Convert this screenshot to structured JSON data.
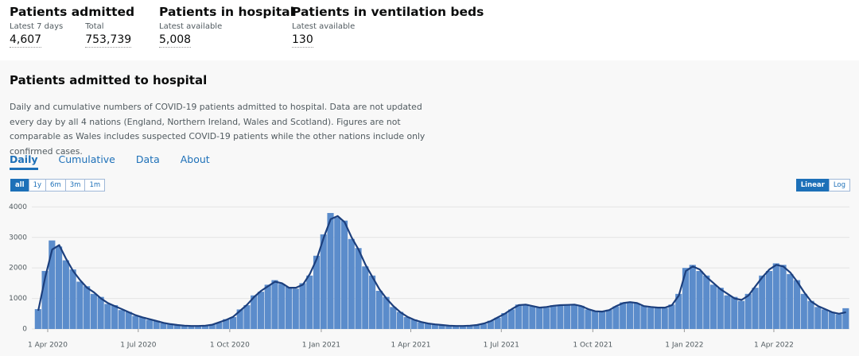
{
  "summary": [
    {
      "title": "Patients admitted",
      "items": [
        {
          "label": "Latest 7 days",
          "value": "4,607"
        },
        {
          "label": "Total",
          "value": "753,739"
        }
      ]
    },
    {
      "title": "Patients in hospital",
      "items": [
        {
          "label": "Latest available",
          "value": "5,008"
        }
      ]
    },
    {
      "title": "Patients in ventilation beds",
      "items": [
        {
          "label": "Latest available",
          "value": "130"
        }
      ]
    }
  ],
  "card": {
    "title": "Patients admitted to hospital",
    "description": "Daily and cumulative numbers of COVID-19 patients admitted to hospital. Data are not updated every day by all 4 nations (England, Northern Ireland, Wales and Scotland). Figures are not comparable as Wales includes suspected COVID-19 patients while the other nations include only confirmed cases.",
    "tabs": [
      "Daily",
      "Cumulative",
      "Data",
      "About"
    ],
    "active_tab": 0,
    "ranges": [
      "all",
      "1y",
      "6m",
      "3m",
      "1m"
    ],
    "active_range": 0,
    "scales": [
      "Linear",
      "Log"
    ],
    "active_scale": 0
  },
  "chart_data": {
    "type": "bar",
    "log_scale": false,
    "grid": true,
    "x": [
      "2020-03-19",
      "2020-03-26",
      "2020-04-02",
      "2020-04-09",
      "2020-04-16",
      "2020-04-23",
      "2020-04-30",
      "2020-05-07",
      "2020-05-14",
      "2020-05-21",
      "2020-05-28",
      "2020-06-04",
      "2020-06-11",
      "2020-06-18",
      "2020-06-25",
      "2020-07-02",
      "2020-07-09",
      "2020-07-16",
      "2020-07-23",
      "2020-07-30",
      "2020-08-06",
      "2020-08-13",
      "2020-08-20",
      "2020-08-27",
      "2020-09-03",
      "2020-09-10",
      "2020-09-17",
      "2020-09-24",
      "2020-10-01",
      "2020-10-08",
      "2020-10-15",
      "2020-10-22",
      "2020-10-29",
      "2020-11-05",
      "2020-11-12",
      "2020-11-19",
      "2020-11-26",
      "2020-12-03",
      "2020-12-10",
      "2020-12-17",
      "2020-12-24",
      "2020-12-31",
      "2021-01-07",
      "2021-01-14",
      "2021-01-21",
      "2021-01-28",
      "2021-02-04",
      "2021-02-11",
      "2021-02-18",
      "2021-02-25",
      "2021-03-04",
      "2021-03-11",
      "2021-03-18",
      "2021-03-25",
      "2021-04-01",
      "2021-04-08",
      "2021-04-15",
      "2021-04-22",
      "2021-04-29",
      "2021-05-06",
      "2021-05-13",
      "2021-05-20",
      "2021-05-27",
      "2021-06-03",
      "2021-06-10",
      "2021-06-17",
      "2021-06-24",
      "2021-07-01",
      "2021-07-08",
      "2021-07-15",
      "2021-07-22",
      "2021-07-29",
      "2021-08-05",
      "2021-08-12",
      "2021-08-19",
      "2021-08-26",
      "2021-09-02",
      "2021-09-09",
      "2021-09-16",
      "2021-09-23",
      "2021-09-30",
      "2021-10-07",
      "2021-10-14",
      "2021-10-21",
      "2021-10-28",
      "2021-11-04",
      "2021-11-11",
      "2021-11-18",
      "2021-11-25",
      "2021-12-02",
      "2021-12-09",
      "2021-12-16",
      "2021-12-23",
      "2021-12-30",
      "2022-01-06",
      "2022-01-13",
      "2022-01-20",
      "2022-01-27",
      "2022-02-03",
      "2022-02-10",
      "2022-02-17",
      "2022-02-24",
      "2022-03-03",
      "2022-03-10",
      "2022-03-17",
      "2022-03-24",
      "2022-03-31",
      "2022-04-07",
      "2022-04-14",
      "2022-04-21",
      "2022-04-28",
      "2022-05-05",
      "2022-05-12",
      "2022-05-19",
      "2022-05-26",
      "2022-06-02",
      "2022-06-09"
    ],
    "series": [
      {
        "type": "bar",
        "color": "#5b8ccb",
        "values": [
          650,
          1900,
          2900,
          2700,
          2250,
          1950,
          1550,
          1400,
          1150,
          1050,
          820,
          780,
          620,
          560,
          430,
          390,
          300,
          270,
          190,
          170,
          120,
          115,
          95,
          105,
          105,
          150,
          210,
          320,
          390,
          640,
          780,
          1100,
          1220,
          1450,
          1600,
          1480,
          1380,
          1320,
          1500,
          1750,
          2400,
          3100,
          3800,
          3650,
          3550,
          2950,
          2650,
          2050,
          1750,
          1250,
          1050,
          720,
          560,
          390,
          310,
          220,
          190,
          140,
          135,
          105,
          95,
          105,
          105,
          140,
          170,
          270,
          370,
          520,
          640,
          800,
          810,
          740,
          710,
          700,
          780,
          760,
          800,
          790,
          760,
          640,
          590,
          560,
          630,
          740,
          870,
          870,
          840,
          760,
          700,
          710,
          690,
          800,
          1150,
          2000,
          2100,
          1900,
          1750,
          1450,
          1350,
          1100,
          1050,
          920,
          1150,
          1350,
          1750,
          1900,
          2150,
          2100,
          1800,
          1600,
          1150,
          920,
          720,
          640,
          560,
          480,
          680
        ]
      },
      {
        "type": "line",
        "color": "#1c3f7d",
        "values": [
          600,
          1700,
          2600,
          2750,
          2300,
          1900,
          1600,
          1350,
          1200,
          1000,
          850,
          750,
          650,
          550,
          450,
          380,
          320,
          260,
          200,
          160,
          130,
          110,
          100,
          100,
          110,
          140,
          220,
          300,
          400,
          600,
          800,
          1050,
          1250,
          1400,
          1550,
          1500,
          1350,
          1350,
          1450,
          1800,
          2300,
          3000,
          3600,
          3700,
          3500,
          3000,
          2600,
          2100,
          1700,
          1300,
          1000,
          750,
          550,
          400,
          300,
          230,
          180,
          150,
          130,
          110,
          100,
          100,
          110,
          130,
          180,
          260,
          380,
          500,
          650,
          780,
          800,
          750,
          700,
          720,
          760,
          780,
          790,
          800,
          750,
          650,
          580,
          570,
          620,
          750,
          850,
          880,
          850,
          750,
          720,
          700,
          700,
          780,
          1100,
          1900,
          2050,
          1950,
          1700,
          1500,
          1300,
          1150,
          1000,
          950,
          1100,
          1400,
          1700,
          1950,
          2100,
          2050,
          1850,
          1550,
          1200,
          900,
          750,
          650,
          550,
          500,
          550
        ]
      }
    ],
    "xlim": [
      "2020-03-16",
      "2022-06-16"
    ],
    "xticks": [
      {
        "value": "2020-04-01",
        "label": "1 Apr 2020"
      },
      {
        "value": "2020-07-01",
        "label": "1 Jul 2020"
      },
      {
        "value": "2020-10-01",
        "label": "1 Oct 2020"
      },
      {
        "value": "2021-01-01",
        "label": "1 Jan 2021"
      },
      {
        "value": "2021-04-01",
        "label": "1 Apr 2021"
      },
      {
        "value": "2021-07-01",
        "label": "1 Jul 2021"
      },
      {
        "value": "2021-10-01",
        "label": "1 Oct 2021"
      },
      {
        "value": "2022-01-01",
        "label": "1 Jan 2022"
      },
      {
        "value": "2022-04-01",
        "label": "1 Apr 2022"
      }
    ],
    "ylim": [
      0,
      4400
    ],
    "yticks": [
      0,
      1000,
      2000,
      3000,
      4000
    ]
  }
}
